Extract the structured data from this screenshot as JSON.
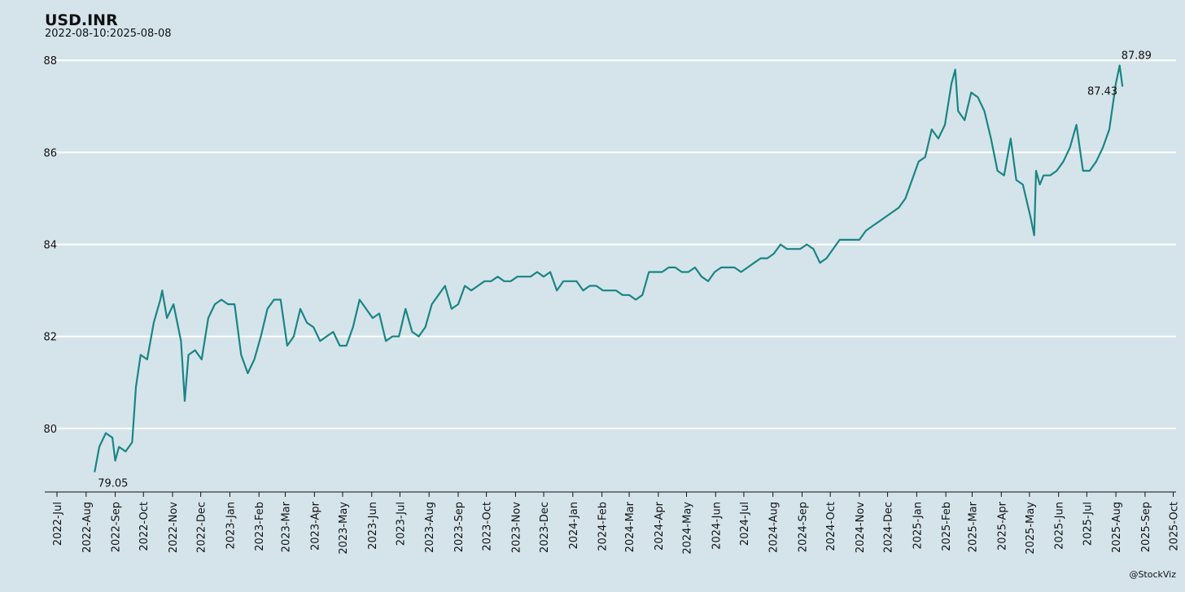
{
  "chart_data": {
    "type": "line",
    "title": "USD.INR",
    "subtitle": "2022-08-10:2025-08-08",
    "caption": "@StockViz",
    "color": "#1a8584",
    "grid": true,
    "x": [
      "2022-08-10",
      "2022-08-15",
      "2022-08-22",
      "2022-08-29",
      "2022-09-01",
      "2022-09-05",
      "2022-09-12",
      "2022-09-19",
      "2022-09-23",
      "2022-09-28",
      "2022-10-05",
      "2022-10-12",
      "2022-10-19",
      "2022-10-21",
      "2022-10-26",
      "2022-11-02",
      "2022-11-10",
      "2022-11-14",
      "2022-11-18",
      "2022-11-25",
      "2022-12-02",
      "2022-12-09",
      "2022-12-16",
      "2022-12-23",
      "2022-12-30",
      "2023-01-06",
      "2023-01-13",
      "2023-01-20",
      "2023-01-27",
      "2023-02-03",
      "2023-02-10",
      "2023-02-17",
      "2023-02-24",
      "2023-03-03",
      "2023-03-10",
      "2023-03-17",
      "2023-03-24",
      "2023-03-31",
      "2023-04-07",
      "2023-04-14",
      "2023-04-21",
      "2023-04-28",
      "2023-05-05",
      "2023-05-12",
      "2023-05-19",
      "2023-05-26",
      "2023-06-02",
      "2023-06-09",
      "2023-06-16",
      "2023-06-23",
      "2023-06-30",
      "2023-07-07",
      "2023-07-14",
      "2023-07-21",
      "2023-07-28",
      "2023-08-04",
      "2023-08-11",
      "2023-08-18",
      "2023-08-25",
      "2023-09-01",
      "2023-09-08",
      "2023-09-15",
      "2023-09-22",
      "2023-09-29",
      "2023-10-06",
      "2023-10-13",
      "2023-10-20",
      "2023-10-27",
      "2023-11-03",
      "2023-11-10",
      "2023-11-17",
      "2023-11-24",
      "2023-12-01",
      "2023-12-08",
      "2023-12-15",
      "2023-12-22",
      "2023-12-29",
      "2024-01-05",
      "2024-01-12",
      "2024-01-19",
      "2024-01-26",
      "2024-02-02",
      "2024-02-09",
      "2024-02-16",
      "2024-02-23",
      "2024-03-01",
      "2024-03-08",
      "2024-03-15",
      "2024-03-22",
      "2024-03-29",
      "2024-04-05",
      "2024-04-12",
      "2024-04-19",
      "2024-04-26",
      "2024-05-03",
      "2024-05-10",
      "2024-05-17",
      "2024-05-24",
      "2024-05-31",
      "2024-06-07",
      "2024-06-14",
      "2024-06-21",
      "2024-06-28",
      "2024-07-05",
      "2024-07-12",
      "2024-07-19",
      "2024-07-26",
      "2024-08-02",
      "2024-08-09",
      "2024-08-16",
      "2024-08-23",
      "2024-08-30",
      "2024-09-06",
      "2024-09-13",
      "2024-09-20",
      "2024-09-27",
      "2024-10-04",
      "2024-10-11",
      "2024-10-18",
      "2024-10-25",
      "2024-11-01",
      "2024-11-08",
      "2024-11-15",
      "2024-11-22",
      "2024-11-29",
      "2024-12-06",
      "2024-12-13",
      "2024-12-20",
      "2024-12-27",
      "2025-01-03",
      "2025-01-10",
      "2025-01-17",
      "2025-01-24",
      "2025-01-31",
      "2025-02-07",
      "2025-02-11",
      "2025-02-14",
      "2025-02-21",
      "2025-02-28",
      "2025-03-07",
      "2025-03-14",
      "2025-03-21",
      "2025-03-28",
      "2025-04-04",
      "2025-04-11",
      "2025-04-17",
      "2025-04-24",
      "2025-05-02",
      "2025-05-06",
      "2025-05-08",
      "2025-05-12",
      "2025-05-16",
      "2025-05-23",
      "2025-05-30",
      "2025-06-06",
      "2025-06-13",
      "2025-06-20",
      "2025-06-27",
      "2025-07-04",
      "2025-07-11",
      "2025-07-18",
      "2025-07-25",
      "2025-08-01",
      "2025-08-05",
      "2025-08-08"
    ],
    "values": [
      79.05,
      79.6,
      79.9,
      79.8,
      79.3,
      79.6,
      79.5,
      79.7,
      80.9,
      81.6,
      81.5,
      82.3,
      82.8,
      83.0,
      82.4,
      82.7,
      81.9,
      80.6,
      81.6,
      81.7,
      81.5,
      82.4,
      82.7,
      82.8,
      82.7,
      82.7,
      81.6,
      81.2,
      81.5,
      82.0,
      82.6,
      82.8,
      82.8,
      81.8,
      82.0,
      82.6,
      82.3,
      82.2,
      81.9,
      82.0,
      82.1,
      81.8,
      81.8,
      82.2,
      82.8,
      82.6,
      82.4,
      82.5,
      81.9,
      82.0,
      82.0,
      82.6,
      82.1,
      82.0,
      82.2,
      82.7,
      82.9,
      83.1,
      82.6,
      82.7,
      83.1,
      83.0,
      83.1,
      83.2,
      83.2,
      83.3,
      83.2,
      83.2,
      83.3,
      83.3,
      83.3,
      83.4,
      83.3,
      83.4,
      83.0,
      83.2,
      83.2,
      83.2,
      83.0,
      83.1,
      83.1,
      83.0,
      83.0,
      83.0,
      82.9,
      82.9,
      82.8,
      82.9,
      83.4,
      83.4,
      83.4,
      83.5,
      83.5,
      83.4,
      83.4,
      83.5,
      83.3,
      83.2,
      83.4,
      83.5,
      83.5,
      83.5,
      83.4,
      83.5,
      83.6,
      83.7,
      83.7,
      83.8,
      84.0,
      83.9,
      83.9,
      83.9,
      84.0,
      83.9,
      83.6,
      83.7,
      83.9,
      84.1,
      84.1,
      84.1,
      84.1,
      84.3,
      84.4,
      84.5,
      84.6,
      84.7,
      84.8,
      85.0,
      85.4,
      85.8,
      85.9,
      86.5,
      86.3,
      86.6,
      87.5,
      87.8,
      86.9,
      86.7,
      87.3,
      87.2,
      86.9,
      86.3,
      85.6,
      85.5,
      86.3,
      85.4,
      85.3,
      84.6,
      84.2,
      85.6,
      85.3,
      85.5,
      85.5,
      85.6,
      85.8,
      86.1,
      86.6,
      85.6,
      85.6,
      85.8,
      86.1,
      86.5,
      87.5,
      87.89,
      87.43
    ],
    "annotations": [
      {
        "x": "2022-08-10",
        "y": 79.05
      },
      {
        "x": "2025-08-05",
        "y": 87.89
      },
      {
        "x": "2025-08-08",
        "y": 87.43
      }
    ],
    "xlim": [
      "2022-06-18",
      "2025-10-04"
    ],
    "xticks": [
      {
        "value": "2022-07-01",
        "label": "2022-Jul"
      },
      {
        "value": "2022-08-01",
        "label": "2022-Aug"
      },
      {
        "value": "2022-09-01",
        "label": "2022-Sep"
      },
      {
        "value": "2022-10-01",
        "label": "2022-Oct"
      },
      {
        "value": "2022-11-01",
        "label": "2022-Nov"
      },
      {
        "value": "2022-12-01",
        "label": "2022-Dec"
      },
      {
        "value": "2023-01-01",
        "label": "2023-Jan"
      },
      {
        "value": "2023-02-01",
        "label": "2023-Feb"
      },
      {
        "value": "2023-03-01",
        "label": "2023-Mar"
      },
      {
        "value": "2023-04-01",
        "label": "2023-Apr"
      },
      {
        "value": "2023-05-01",
        "label": "2023-May"
      },
      {
        "value": "2023-06-01",
        "label": "2023-Jun"
      },
      {
        "value": "2023-07-01",
        "label": "2023-Jul"
      },
      {
        "value": "2023-08-01",
        "label": "2023-Aug"
      },
      {
        "value": "2023-09-01",
        "label": "2023-Sep"
      },
      {
        "value": "2023-10-01",
        "label": "2023-Oct"
      },
      {
        "value": "2023-11-01",
        "label": "2023-Nov"
      },
      {
        "value": "2023-12-01",
        "label": "2023-Dec"
      },
      {
        "value": "2024-01-01",
        "label": "2024-Jan"
      },
      {
        "value": "2024-02-01",
        "label": "2024-Feb"
      },
      {
        "value": "2024-03-01",
        "label": "2024-Mar"
      },
      {
        "value": "2024-04-01",
        "label": "2024-Apr"
      },
      {
        "value": "2024-05-01",
        "label": "2024-May"
      },
      {
        "value": "2024-06-01",
        "label": "2024-Jun"
      },
      {
        "value": "2024-07-01",
        "label": "2024-Jul"
      },
      {
        "value": "2024-08-01",
        "label": "2024-Aug"
      },
      {
        "value": "2024-09-01",
        "label": "2024-Sep"
      },
      {
        "value": "2024-10-01",
        "label": "2024-Oct"
      },
      {
        "value": "2024-11-01",
        "label": "2024-Nov"
      },
      {
        "value": "2024-12-01",
        "label": "2024-Dec"
      },
      {
        "value": "2025-01-01",
        "label": "2025-Jan"
      },
      {
        "value": "2025-02-01",
        "label": "2025-Feb"
      },
      {
        "value": "2025-03-01",
        "label": "2025-Mar"
      },
      {
        "value": "2025-04-01",
        "label": "2025-Apr"
      },
      {
        "value": "2025-05-01",
        "label": "2025-May"
      },
      {
        "value": "2025-06-01",
        "label": "2025-Jun"
      },
      {
        "value": "2025-07-01",
        "label": "2025-Jul"
      },
      {
        "value": "2025-08-01",
        "label": "2025-Aug"
      },
      {
        "value": "2025-09-01",
        "label": "2025-Sep"
      },
      {
        "value": "2025-10-01",
        "label": "2025-Oct"
      }
    ],
    "ylim": [
      78.62,
      88.34
    ],
    "yticks": [
      80,
      82,
      84,
      86,
      88
    ]
  }
}
